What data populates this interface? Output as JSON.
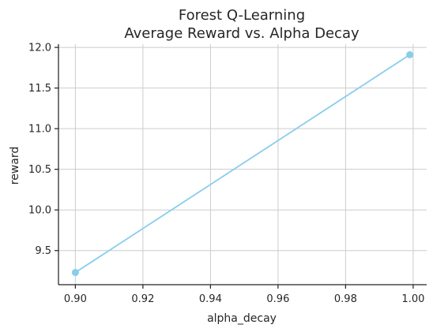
{
  "chart_data": {
    "type": "line",
    "title_line1": "Forest Q-Learning",
    "title_line2": "Average Reward vs. Alpha Decay",
    "xlabel": "alpha_decay",
    "ylabel": "reward",
    "xlim": [
      0.895,
      1.004
    ],
    "ylim": [
      9.08,
      12.04
    ],
    "x_ticks": [
      0.9,
      0.92,
      0.94,
      0.96,
      0.98,
      1.0
    ],
    "x_tick_labels": [
      "0.90",
      "0.92",
      "0.94",
      "0.96",
      "0.98",
      "1.00"
    ],
    "y_ticks": [
      9.5,
      10.0,
      10.5,
      11.0,
      11.5,
      12.0
    ],
    "y_tick_labels": [
      "9.5",
      "10.0",
      "10.5",
      "11.0",
      "11.5",
      "12.0"
    ],
    "grid": true,
    "series": [
      {
        "color": "#87CEEB",
        "x": [
          0.9,
          0.999
        ],
        "y": [
          9.23,
          11.91
        ]
      }
    ]
  }
}
